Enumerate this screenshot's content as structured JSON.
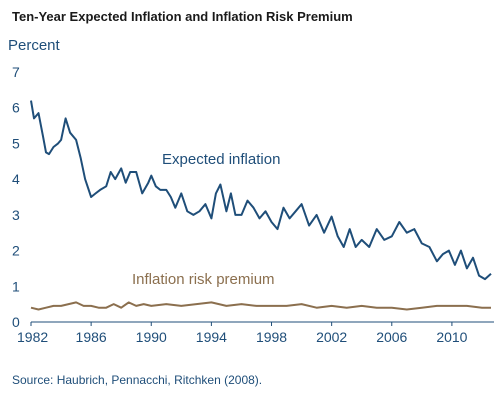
{
  "chart_data": {
    "type": "line",
    "title": "Ten-Year Expected Inflation and Inflation Risk Premium",
    "ylabel": "Percent",
    "xlim": [
      1982,
      2012.8
    ],
    "ylim": [
      0,
      7
    ],
    "x_ticks": [
      "1982",
      "1986",
      "1990",
      "1994",
      "1998",
      "2002",
      "2006",
      "2010"
    ],
    "y_ticks": [
      "0",
      "1",
      "2",
      "3",
      "4",
      "5",
      "6",
      "7"
    ],
    "grid": false,
    "colors": {
      "expected": "#1f4e79",
      "premium": "#8b6f4e",
      "axis": "#1f4e79"
    },
    "source": "Source: Haubrich, Pennacchi, Ritchken (2008).",
    "series": [
      {
        "name": "Expected inflation",
        "x": [
          1982.0,
          1982.2,
          1982.5,
          1982.8,
          1983.0,
          1983.2,
          1983.5,
          1983.8,
          1984.0,
          1984.3,
          1984.6,
          1985.0,
          1985.3,
          1985.6,
          1986.0,
          1986.3,
          1986.6,
          1987.0,
          1987.3,
          1987.6,
          1988.0,
          1988.3,
          1988.6,
          1989.0,
          1989.4,
          1989.8,
          1990.0,
          1990.3,
          1990.6,
          1991.0,
          1991.3,
          1991.6,
          1992.0,
          1992.4,
          1992.8,
          1993.2,
          1993.6,
          1994.0,
          1994.3,
          1994.6,
          1995.0,
          1995.3,
          1995.6,
          1996.0,
          1996.4,
          1996.8,
          1997.2,
          1997.6,
          1998.0,
          1998.4,
          1998.8,
          1999.2,
          1999.6,
          2000.0,
          2000.5,
          2001.0,
          2001.5,
          2002.0,
          2002.4,
          2002.8,
          2003.2,
          2003.6,
          2004.0,
          2004.5,
          2005.0,
          2005.5,
          2006.0,
          2006.5,
          2007.0,
          2007.5,
          2008.0,
          2008.5,
          2009.0,
          2009.4,
          2009.8,
          2010.2,
          2010.6,
          2011.0,
          2011.4,
          2011.8,
          2012.2,
          2012.6
        ],
        "values": [
          6.2,
          5.7,
          5.85,
          5.2,
          4.75,
          4.7,
          4.9,
          5.0,
          5.1,
          5.7,
          5.3,
          5.1,
          4.6,
          4.0,
          3.5,
          3.6,
          3.7,
          3.8,
          4.2,
          4.0,
          4.3,
          3.9,
          4.2,
          4.2,
          3.6,
          3.9,
          4.1,
          3.8,
          3.7,
          3.7,
          3.5,
          3.2,
          3.6,
          3.1,
          3.0,
          3.1,
          3.3,
          2.9,
          3.6,
          3.85,
          3.1,
          3.6,
          3.0,
          3.0,
          3.4,
          3.2,
          2.9,
          3.1,
          2.8,
          2.6,
          3.2,
          2.9,
          3.1,
          3.3,
          2.7,
          3.0,
          2.5,
          2.95,
          2.4,
          2.1,
          2.6,
          2.1,
          2.3,
          2.1,
          2.6,
          2.3,
          2.4,
          2.8,
          2.5,
          2.6,
          2.2,
          2.1,
          1.7,
          1.9,
          2.0,
          1.6,
          2.0,
          1.5,
          1.8,
          1.3,
          1.2,
          1.35
        ]
      },
      {
        "name": "Inflation risk premium",
        "x": [
          1982.0,
          1982.5,
          1983.0,
          1983.5,
          1984.0,
          1984.5,
          1985.0,
          1985.5,
          1986.0,
          1986.5,
          1987.0,
          1987.5,
          1988.0,
          1988.5,
          1989.0,
          1989.5,
          1990.0,
          1991.0,
          1992.0,
          1993.0,
          1994.0,
          1994.5,
          1995.0,
          1996.0,
          1997.0,
          1998.0,
          1999.0,
          2000.0,
          2001.0,
          2002.0,
          2003.0,
          2004.0,
          2005.0,
          2006.0,
          2007.0,
          2008.0,
          2009.0,
          2010.0,
          2011.0,
          2012.0,
          2012.6
        ],
        "values": [
          0.4,
          0.35,
          0.4,
          0.45,
          0.45,
          0.5,
          0.55,
          0.45,
          0.45,
          0.4,
          0.4,
          0.5,
          0.4,
          0.55,
          0.45,
          0.5,
          0.45,
          0.5,
          0.45,
          0.5,
          0.55,
          0.5,
          0.45,
          0.5,
          0.45,
          0.45,
          0.45,
          0.5,
          0.4,
          0.45,
          0.4,
          0.45,
          0.4,
          0.4,
          0.35,
          0.4,
          0.45,
          0.45,
          0.45,
          0.4,
          0.4
        ]
      }
    ]
  }
}
